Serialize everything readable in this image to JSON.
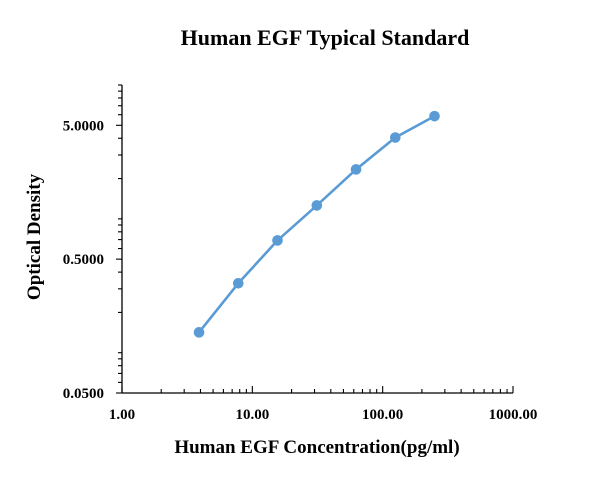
{
  "chart_data": {
    "type": "line",
    "title": "Human EGF Typical Standard",
    "xlabel": "Human EGF Concentration(pg/ml)",
    "ylabel": "Optical Density",
    "x_scale": "log",
    "y_scale": "log",
    "xlim": [
      1,
      1000
    ],
    "ylim": [
      0.05,
      10
    ],
    "x_ticks": [
      {
        "value": 1,
        "label": "1.00"
      },
      {
        "value": 10,
        "label": "10.00"
      },
      {
        "value": 100,
        "label": "100.00"
      },
      {
        "value": 1000,
        "label": "1000.00"
      }
    ],
    "y_ticks": [
      {
        "value": 0.05,
        "label": "0.0500"
      },
      {
        "value": 0.5,
        "label": "0.5000"
      },
      {
        "value": 5,
        "label": "5.0000"
      }
    ],
    "grid": false,
    "legend": "none",
    "series": [
      {
        "color": "#5b9bd5",
        "x": [
          3.9,
          7.8,
          15.6,
          31.25,
          62.5,
          125,
          250
        ],
        "y": [
          0.142,
          0.33,
          0.69,
          1.26,
          2.34,
          4.05,
          5.85
        ]
      }
    ]
  }
}
